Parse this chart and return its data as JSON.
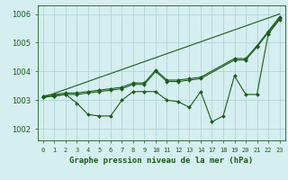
{
  "background_color": "#d5eef0",
  "grid_color": "#aacfd4",
  "line_color": "#1a5c1a",
  "text_color": "#1a5c1a",
  "xlabel": "Graphe pression niveau de la mer (hPa)",
  "ylim": [
    1001.6,
    1006.3
  ],
  "yticks": [
    1002,
    1003,
    1004,
    1005,
    1006
  ],
  "xticks": [
    0,
    1,
    2,
    3,
    4,
    5,
    6,
    7,
    8,
    9,
    10,
    11,
    12,
    13,
    14,
    17,
    18,
    19,
    20,
    21,
    22,
    23
  ],
  "xlim": [
    -0.3,
    23.5
  ],
  "series": [
    {
      "x": [
        0,
        1,
        2,
        3,
        4,
        5,
        6,
        7,
        8,
        9,
        10,
        11,
        12,
        13,
        14,
        17,
        18,
        19,
        20,
        21,
        22,
        23
      ],
      "y": [
        1003.1,
        1003.15,
        1003.2,
        1002.9,
        1002.5,
        1002.45,
        1002.45,
        1003.0,
        1003.3,
        1003.3,
        1003.3,
        1003.0,
        1002.95,
        1002.75,
        1003.3,
        1002.25,
        1002.45,
        1003.85,
        1003.2,
        1003.2,
        1005.3,
        1005.8
      ],
      "marker": true
    },
    {
      "x": [
        0,
        23
      ],
      "y": [
        1003.1,
        1006.0
      ],
      "marker": false
    },
    {
      "x": [
        0,
        1,
        2,
        3,
        4,
        5,
        6,
        7,
        8,
        9,
        10,
        11,
        12,
        13,
        14,
        19,
        20,
        21,
        22,
        23
      ],
      "y": [
        1003.1,
        1003.15,
        1003.2,
        1003.2,
        1003.25,
        1003.3,
        1003.35,
        1003.4,
        1003.55,
        1003.55,
        1004.0,
        1003.65,
        1003.65,
        1003.7,
        1003.75,
        1004.4,
        1004.4,
        1004.85,
        1005.35,
        1005.85
      ],
      "marker": true
    },
    {
      "x": [
        0,
        1,
        2,
        3,
        4,
        5,
        6,
        7,
        8,
        9,
        10,
        11,
        12,
        13,
        14,
        19,
        20,
        21,
        22,
        23
      ],
      "y": [
        1003.15,
        1003.2,
        1003.25,
        1003.25,
        1003.3,
        1003.35,
        1003.4,
        1003.45,
        1003.6,
        1003.6,
        1004.05,
        1003.7,
        1003.7,
        1003.75,
        1003.8,
        1004.45,
        1004.45,
        1004.9,
        1005.4,
        1005.9
      ],
      "marker": true
    }
  ]
}
